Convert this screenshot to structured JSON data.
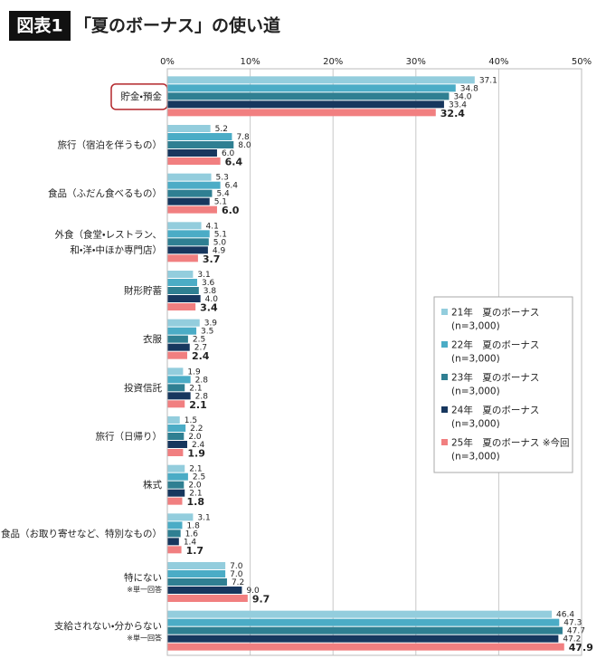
{
  "chart_data": {
    "type": "hbar",
    "badge": "図表1",
    "title": "「夏のボーナス」の使い道",
    "xlim": [
      0,
      50
    ],
    "xticks": [
      {
        "value": 0,
        "label": "0%"
      },
      {
        "value": 10,
        "label": "10%"
      },
      {
        "value": 20,
        "label": "20%"
      },
      {
        "value": 30,
        "label": "30%"
      },
      {
        "value": 40,
        "label": "40%"
      },
      {
        "value": 50,
        "label": "50%"
      }
    ],
    "grid": true,
    "legend": "right",
    "categories": [
      "貯金・預金",
      "旅行（宿泊を伴うもの）",
      "食品（ふだん食べるもの）",
      "外食（食堂・レストラン、\n和・洋・中ほか専門店）",
      "財形貯蓄",
      "衣服",
      "投資信託",
      "旅行（日帰り）",
      "株式",
      "食品（お取り寄せなど、特別なもの）",
      "特にない",
      "支給されない・分からない"
    ],
    "category_notes": [
      null,
      null,
      null,
      null,
      null,
      null,
      null,
      null,
      null,
      null,
      "※単一回答",
      "※単一回答"
    ],
    "series": [
      {
        "name": "21年　夏のボーナス\n(n=3,000)",
        "color": "#93cddd",
        "values": [
          37.1,
          5.2,
          5.3,
          4.1,
          3.1,
          3.9,
          1.9,
          1.5,
          2.1,
          3.1,
          7.0,
          46.4
        ],
        "value_labels": [
          "37.1",
          "5.2",
          "5.3",
          "4.1",
          "3.1",
          "3.9",
          "1.9",
          "1.5",
          "2.1",
          "3.1",
          "7.0",
          "46.4"
        ]
      },
      {
        "name": "22年　夏のボーナス\n(n=3,000)",
        "color": "#4bacc6",
        "values": [
          34.8,
          7.8,
          6.4,
          5.1,
          3.6,
          3.5,
          2.8,
          2.2,
          2.5,
          1.8,
          7.0,
          47.3
        ],
        "value_labels": [
          "34.8",
          "7.8",
          "6.4",
          "5.1",
          "3.6",
          "3.5",
          "2.8",
          "2.2",
          "2.5",
          "1.8",
          "7.0",
          "47.3"
        ]
      },
      {
        "name": "23年　夏のボーナス\n(n=3,000)",
        "color": "#2f7f92",
        "values": [
          34.0,
          8.0,
          5.4,
          5.0,
          3.8,
          2.5,
          2.1,
          2.0,
          2.0,
          1.6,
          7.2,
          47.7
        ],
        "value_labels": [
          "34.0",
          "8.0",
          "5.4",
          "5.0",
          "3.8",
          "2.5",
          "2.1",
          "2.0",
          "2.0",
          "1.6",
          "7.2",
          "47.7"
        ]
      },
      {
        "name": "24年　夏のボーナス\n(n=3,000)",
        "color": "#17375e",
        "values": [
          33.4,
          6.0,
          5.1,
          4.9,
          4.0,
          2.7,
          2.8,
          2.4,
          2.1,
          1.4,
          9.0,
          47.2
        ],
        "value_labels": [
          "33.4",
          "6.0",
          "5.1",
          "4.9",
          "4.0",
          "2.7",
          "2.8",
          "2.4",
          "2.1",
          "1.4",
          "9.0",
          "47.2"
        ]
      },
      {
        "name": "25年　夏のボーナス ※今回\n(n=3,000)",
        "color": "#f17f80",
        "values": [
          32.4,
          6.4,
          6.0,
          3.7,
          3.4,
          2.4,
          2.1,
          1.9,
          1.8,
          1.7,
          9.7,
          47.9
        ],
        "value_labels": [
          "32.4",
          "6.4",
          "6.0",
          "3.7",
          "3.4",
          "2.4",
          "2.1",
          "1.9",
          "1.8",
          "1.7",
          "9.7",
          "47.9"
        ]
      }
    ]
  }
}
